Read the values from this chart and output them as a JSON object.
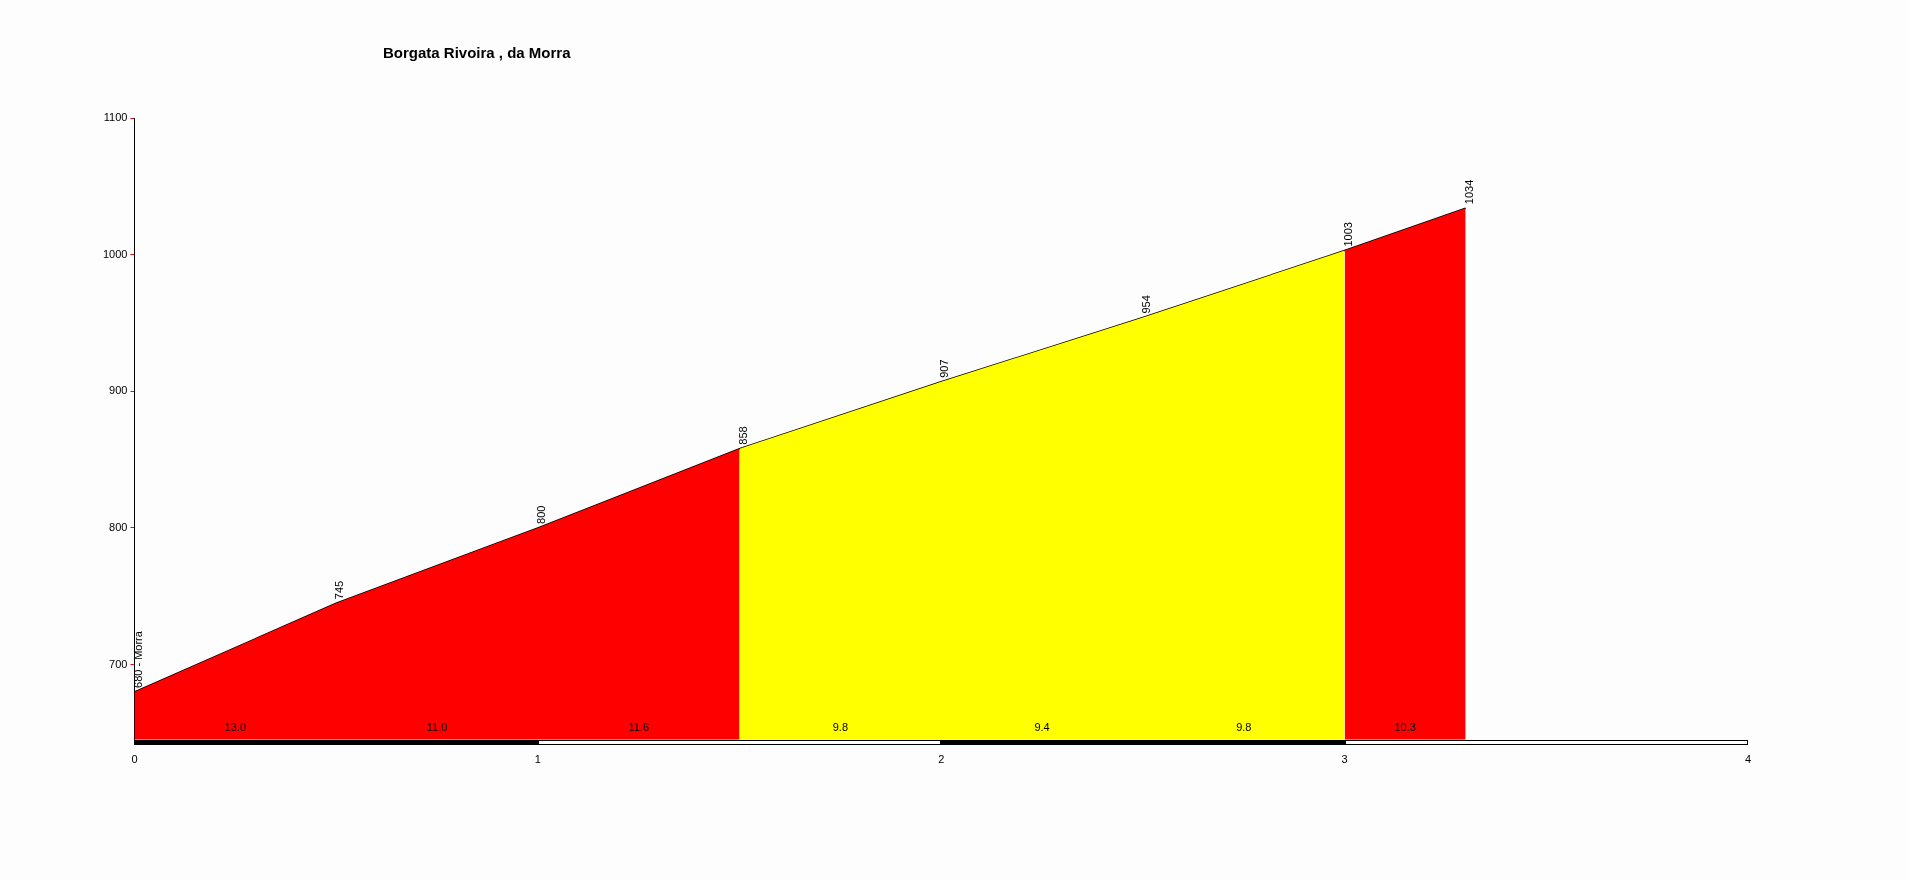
{
  "chart_data": {
    "type": "area",
    "title": "Borgata Rivoira , da Morra",
    "xlim": [
      0,
      4
    ],
    "xticks": [
      0,
      1,
      2,
      3,
      4
    ],
    "ylim": [
      645,
      1100
    ],
    "yticks": [
      700,
      800,
      900,
      1000,
      1100
    ],
    "grid": false,
    "legend": false,
    "series": [
      {
        "type": "area",
        "color": "#ff0000",
        "x": [
          0,
          0.5,
          1,
          1.5
        ],
        "values": [
          680,
          745,
          800,
          858
        ]
      },
      {
        "type": "area",
        "color": "#ffff00",
        "x": [
          1.5,
          2,
          2.5,
          3
        ],
        "values": [
          858,
          907,
          954,
          1003
        ]
      },
      {
        "type": "area",
        "color": "#ff0000",
        "x": [
          3,
          3.3
        ],
        "values": [
          1003,
          1034
        ]
      },
      {
        "type": "line",
        "color": "#000000",
        "x": [
          0,
          0.5,
          1,
          1.5,
          2,
          2.5,
          3,
          3.3
        ],
        "values": [
          680,
          745,
          800,
          858,
          907,
          954,
          1003,
          1034
        ],
        "value_labels": [
          "680 - Morra",
          "745",
          "800",
          "858",
          "907",
          "954",
          "1003",
          "1034"
        ]
      }
    ],
    "annotations": [
      {
        "text": "13.0",
        "x": 0.25,
        "y": 645
      },
      {
        "text": "11.0",
        "x": 0.75,
        "y": 645
      },
      {
        "text": "11.6",
        "x": 1.25,
        "y": 645
      },
      {
        "text": "9.8",
        "x": 1.75,
        "y": 645
      },
      {
        "text": "9.4",
        "x": 2.25,
        "y": 645
      },
      {
        "text": "9.8",
        "x": 2.75,
        "y": 645
      },
      {
        "text": "10.3",
        "x": 3.15,
        "y": 645
      }
    ]
  }
}
